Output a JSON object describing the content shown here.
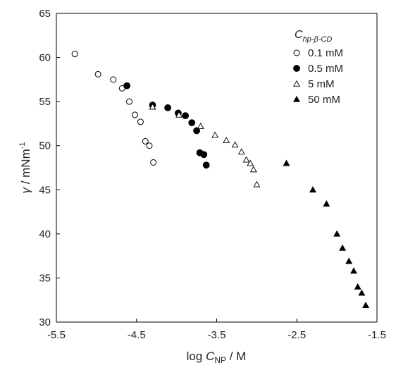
{
  "chart_data": {
    "type": "scatter",
    "xlabel": {
      "prefix": "log ",
      "var": "C",
      "sub": "NP",
      "suffix": " / M"
    },
    "ylabel": {
      "var": "γ",
      "unit": " / mNm",
      "sup": "-1"
    },
    "xlim": [
      -5.5,
      -1.5
    ],
    "ylim": [
      30,
      65
    ],
    "xticks": [
      -5.5,
      -4.5,
      -3.5,
      -2.5,
      -1.5
    ],
    "xtick_labels": [
      "-5.5",
      "-4.5",
      "-3.5",
      "-2.5",
      "-1.5"
    ],
    "yticks": [
      30,
      35,
      40,
      45,
      50,
      55,
      60,
      65
    ],
    "ytick_labels": [
      "30",
      "35",
      "40",
      "45",
      "50",
      "55",
      "60",
      "65"
    ],
    "grid": false,
    "legend": {
      "placement": "top-right",
      "title": {
        "var": "C",
        "sub": "hp-β-CD"
      }
    },
    "series": [
      {
        "name": "0.1 mM",
        "marker": "circle-open",
        "color": "#000000",
        "points": [
          [
            -5.27,
            60.4
          ],
          [
            -4.98,
            58.1
          ],
          [
            -4.79,
            57.5
          ],
          [
            -4.68,
            56.5
          ],
          [
            -4.59,
            55.0
          ],
          [
            -4.52,
            53.5
          ],
          [
            -4.45,
            52.7
          ],
          [
            -4.39,
            50.5
          ],
          [
            -4.34,
            50.0
          ],
          [
            -4.29,
            48.1
          ]
        ]
      },
      {
        "name": "0.5 mM",
        "marker": "circle-filled",
        "color": "#000000",
        "points": [
          [
            -4.62,
            56.8
          ],
          [
            -4.3,
            54.6
          ],
          [
            -4.11,
            54.3
          ],
          [
            -3.98,
            53.7
          ],
          [
            -3.89,
            53.4
          ],
          [
            -3.81,
            52.6
          ],
          [
            -3.75,
            51.7
          ],
          [
            -3.71,
            49.2
          ],
          [
            -3.66,
            49.0
          ],
          [
            -3.63,
            47.8
          ]
        ]
      },
      {
        "name": "5 mM",
        "marker": "triangle-open",
        "color": "#000000",
        "points": [
          [
            -4.3,
            54.4
          ],
          [
            -3.97,
            53.5
          ],
          [
            -3.7,
            52.2
          ],
          [
            -3.52,
            51.2
          ],
          [
            -3.38,
            50.6
          ],
          [
            -3.27,
            50.1
          ],
          [
            -3.19,
            49.3
          ],
          [
            -3.13,
            48.4
          ],
          [
            -3.08,
            48.0
          ],
          [
            -3.04,
            47.3
          ],
          [
            -3.0,
            45.6
          ]
        ]
      },
      {
        "name": "50 mM",
        "marker": "triangle-filled",
        "color": "#000000",
        "points": [
          [
            -2.63,
            48.0
          ],
          [
            -2.3,
            45.0
          ],
          [
            -2.13,
            43.4
          ],
          [
            -2.0,
            40.0
          ],
          [
            -1.93,
            38.4
          ],
          [
            -1.85,
            36.9
          ],
          [
            -1.79,
            35.8
          ],
          [
            -1.74,
            34.0
          ],
          [
            -1.69,
            33.3
          ],
          [
            -1.64,
            31.9
          ]
        ]
      }
    ]
  }
}
